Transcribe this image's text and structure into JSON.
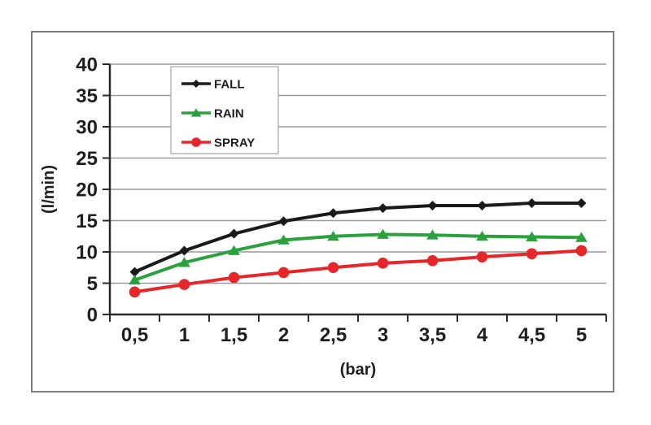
{
  "chart_data": {
    "type": "line",
    "title": "",
    "xlabel": "(bar)",
    "ylabel": "(l/min)",
    "x": [
      0.5,
      1,
      1.5,
      2,
      2.5,
      3,
      3.5,
      4,
      4.5,
      5
    ],
    "x_tick_labels": [
      "0,5",
      "1",
      "1,5",
      "2",
      "2,5",
      "3",
      "3,5",
      "4",
      "4,5",
      "5"
    ],
    "y_ticks": [
      0,
      5,
      10,
      15,
      20,
      25,
      30,
      35,
      40
    ],
    "ylim": [
      0,
      40
    ],
    "xlim_categories": 10,
    "grid": true,
    "legend_position": "top-left-inside",
    "series": [
      {
        "name": "FALL",
        "color": "#1a1a1a",
        "marker": "diamond",
        "values": [
          6.8,
          10.2,
          12.9,
          14.9,
          16.2,
          17.0,
          17.4,
          17.4,
          17.8,
          17.8
        ]
      },
      {
        "name": "RAIN",
        "color": "#2aa13c",
        "marker": "triangle",
        "values": [
          5.5,
          8.3,
          10.2,
          11.9,
          12.5,
          12.8,
          12.7,
          12.5,
          12.4,
          12.3
        ]
      },
      {
        "name": "SPRAY",
        "color": "#e62629",
        "marker": "circle",
        "values": [
          3.6,
          4.8,
          5.9,
          6.7,
          7.5,
          8.2,
          8.6,
          9.2,
          9.7,
          10.2
        ]
      }
    ]
  },
  "colors": {
    "background": "#ffffff",
    "panel_border": "#7d7d7d",
    "grid": "#999999",
    "axis": "#2b2b2b",
    "text": "#1f1f1f",
    "legend_border": "#ababab",
    "legend_fill": "#ffffff"
  }
}
